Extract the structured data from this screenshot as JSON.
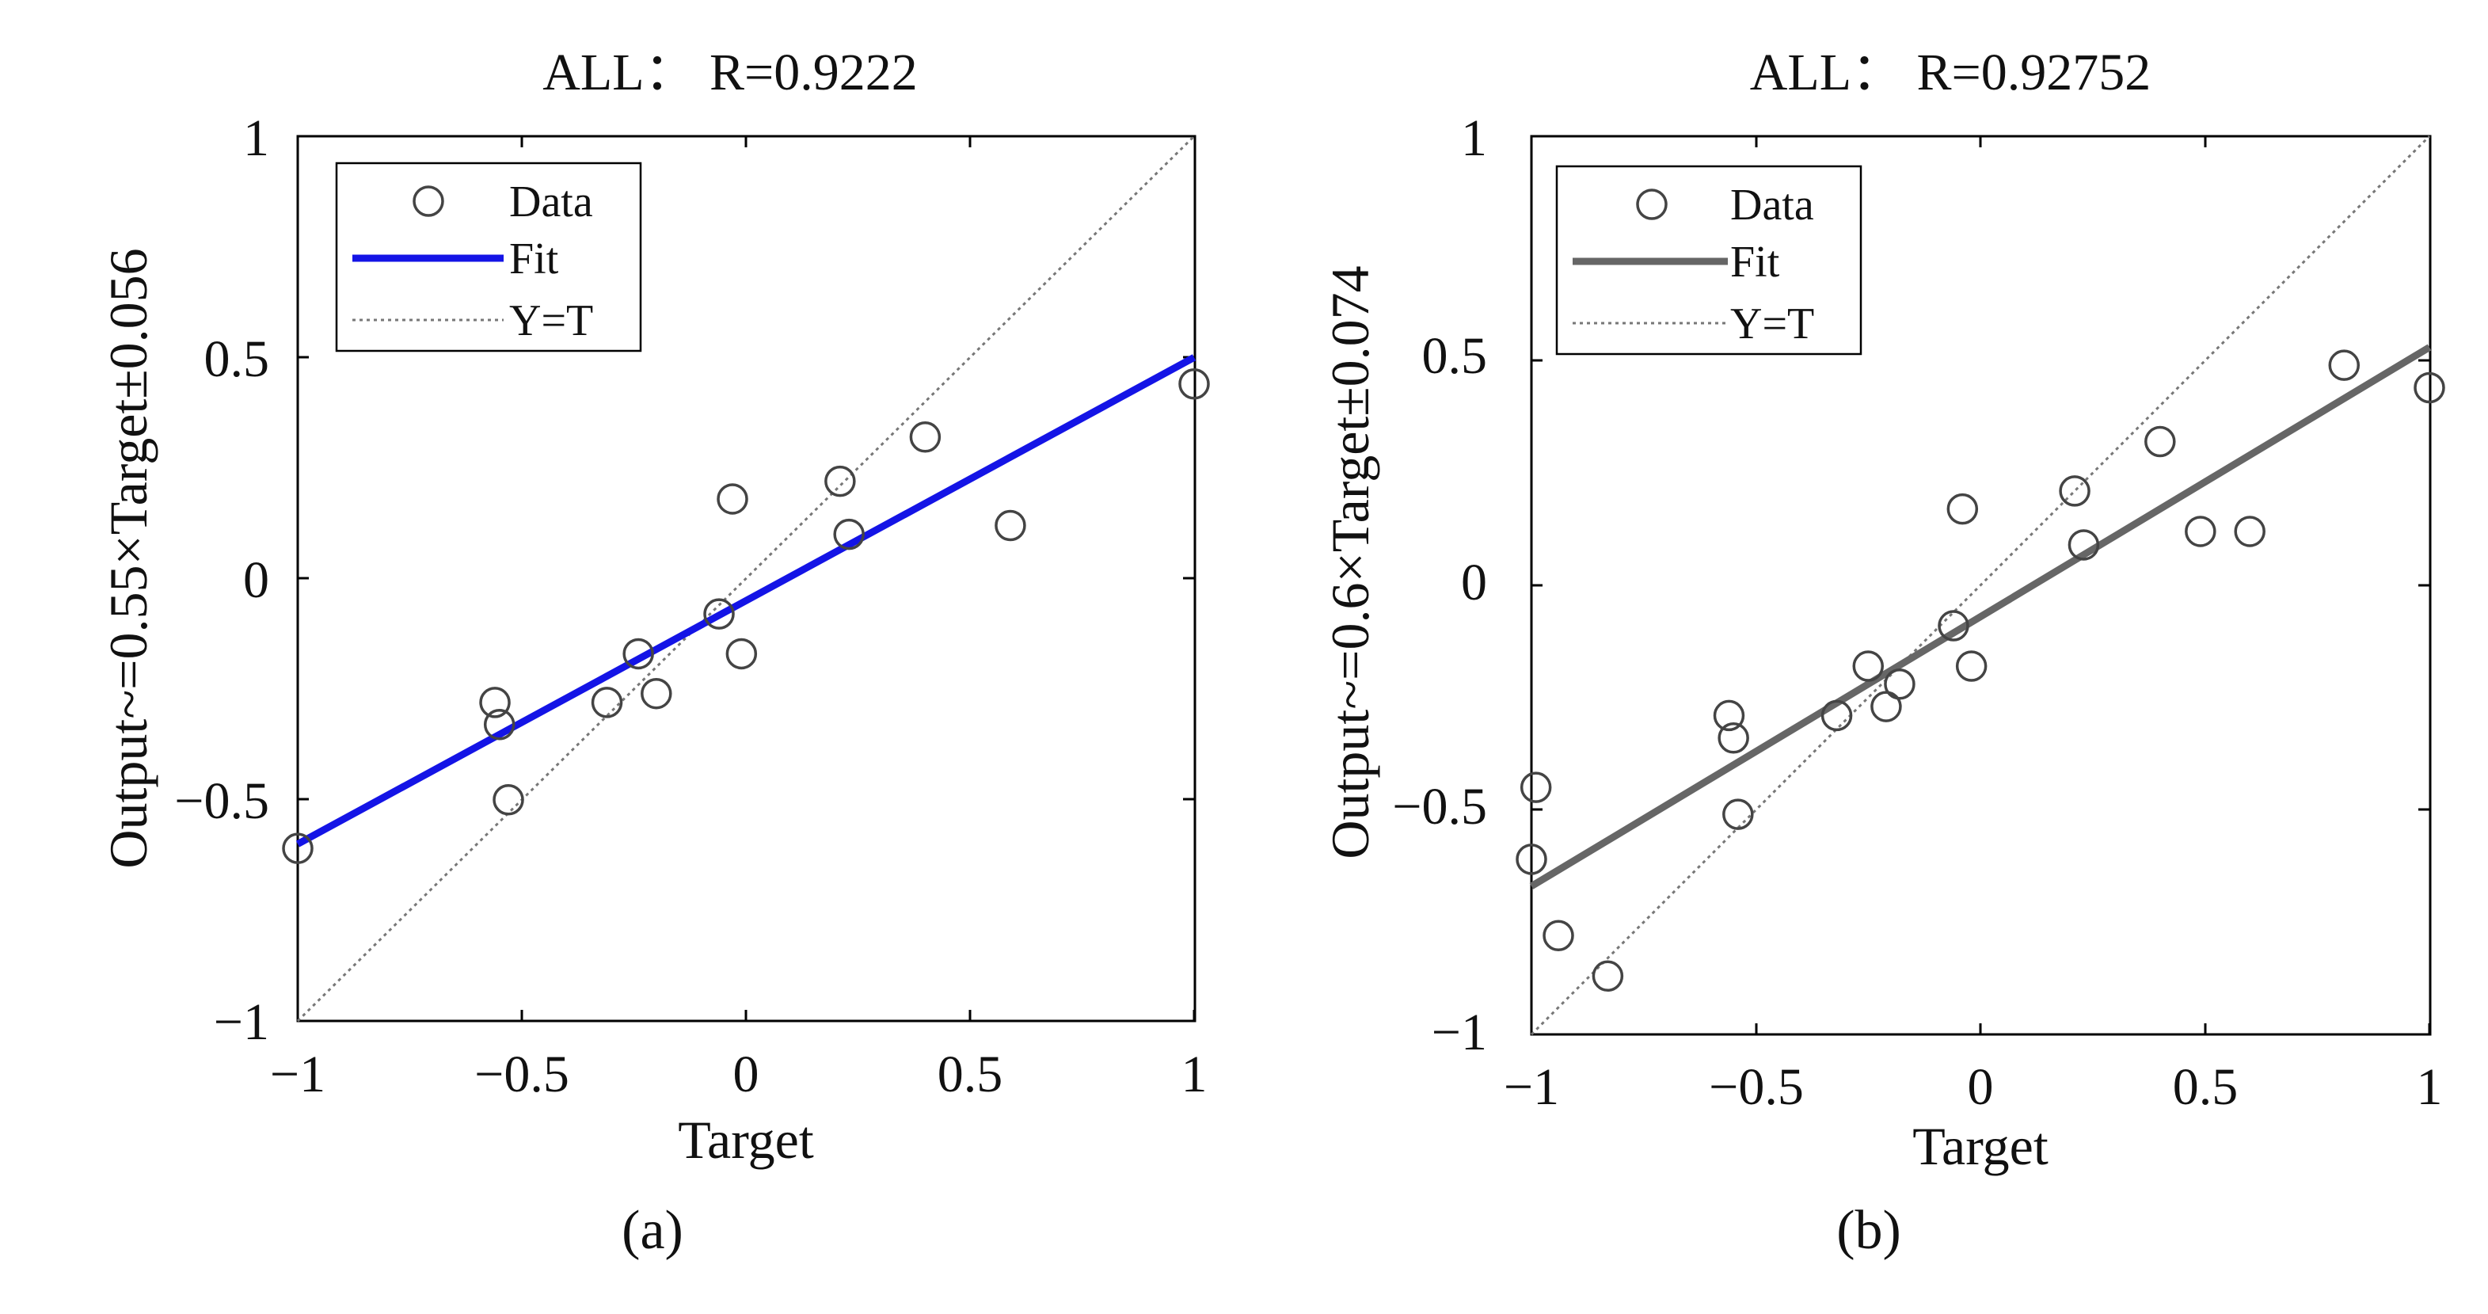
{
  "chart_data": [
    {
      "type": "scatter",
      "panel_label": "a",
      "title": "ALL：  R=0.9222",
      "xlabel": "Target",
      "ylabel": "Output~=0.55×Target±0.056",
      "xlim": [
        -1,
        1
      ],
      "ylim": [
        -1,
        1
      ],
      "xticks": [
        -1,
        -0.5,
        0,
        0.5,
        1
      ],
      "xtick_labels": [
        "−1",
        "−0.5",
        "0",
        "0.5",
        "1"
      ],
      "yticks": [
        1,
        0.5,
        0,
        -0.5,
        -1
      ],
      "ytick_labels": [
        "1",
        "0.5",
        "0",
        "−0.5",
        "−1"
      ],
      "grid": false,
      "legend_position": "top-left",
      "legend": [
        "Data",
        "Fit",
        "Y=T"
      ],
      "series": [
        {
          "name": "Data",
          "kind": "markers",
          "points": [
            [
              -1.0,
              -0.61
            ],
            [
              -0.56,
              -0.28
            ],
            [
              -0.55,
              -0.33
            ],
            [
              -0.53,
              -0.5
            ],
            [
              -0.31,
              -0.28
            ],
            [
              -0.24,
              -0.17
            ],
            [
              -0.2,
              -0.26
            ],
            [
              -0.06,
              -0.08
            ],
            [
              -0.03,
              0.18
            ],
            [
              -0.01,
              -0.17
            ],
            [
              0.21,
              0.22
            ],
            [
              0.23,
              0.1
            ],
            [
              0.4,
              0.32
            ],
            [
              0.59,
              0.12
            ],
            [
              1.0,
              0.44
            ]
          ]
        },
        {
          "name": "Fit",
          "kind": "line",
          "points": [
            [
              -1.0,
              -0.6
            ],
            [
              1.0,
              0.5
            ]
          ],
          "color": "#1414e6"
        },
        {
          "name": "Y=T",
          "kind": "dotted",
          "points": [
            [
              -1.0,
              -1.0
            ],
            [
              1.0,
              1.0
            ]
          ],
          "color": "#777777"
        }
      ]
    },
    {
      "type": "scatter",
      "panel_label": "b",
      "title": "ALL：  R=0.92752",
      "xlabel": "Target",
      "ylabel": "Output~=0.6×Target±0.074",
      "xlim": [
        -1,
        1
      ],
      "ylim": [
        -1,
        1
      ],
      "xticks": [
        -1,
        -0.5,
        0,
        0.5,
        1
      ],
      "xtick_labels": [
        "−1",
        "−0.5",
        "0",
        "0.5",
        "1"
      ],
      "yticks": [
        1,
        0.5,
        0,
        -0.5,
        -1
      ],
      "ytick_labels": [
        "1",
        "0.5",
        "0",
        "−0.5",
        "−1"
      ],
      "grid": false,
      "legend_position": "top-left",
      "legend": [
        "Data",
        "Fit",
        "Y=T"
      ],
      "series": [
        {
          "name": "Data",
          "kind": "markers",
          "points": [
            [
              -1.0,
              -0.61
            ],
            [
              -0.99,
              -0.45
            ],
            [
              -0.94,
              -0.78
            ],
            [
              -0.83,
              -0.87
            ],
            [
              -0.56,
              -0.29
            ],
            [
              -0.55,
              -0.34
            ],
            [
              -0.54,
              -0.51
            ],
            [
              -0.32,
              -0.29
            ],
            [
              -0.25,
              -0.18
            ],
            [
              -0.21,
              -0.27
            ],
            [
              -0.18,
              -0.22
            ],
            [
              -0.06,
              -0.09
            ],
            [
              -0.04,
              0.17
            ],
            [
              -0.02,
              -0.18
            ],
            [
              0.21,
              0.21
            ],
            [
              0.23,
              0.09
            ],
            [
              0.4,
              0.32
            ],
            [
              0.49,
              0.12
            ],
            [
              0.6,
              0.12
            ],
            [
              0.81,
              0.49
            ],
            [
              1.0,
              0.44
            ]
          ]
        },
        {
          "name": "Fit",
          "kind": "line",
          "points": [
            [
              -1.0,
              -0.67
            ],
            [
              1.0,
              0.53
            ]
          ],
          "color": "#666666"
        },
        {
          "name": "Y=T",
          "kind": "dotted",
          "points": [
            [
              -1.0,
              -1.0
            ],
            [
              1.0,
              1.0
            ]
          ],
          "color": "#777777"
        }
      ]
    }
  ],
  "captions": [
    "(a)",
    "(b)"
  ]
}
